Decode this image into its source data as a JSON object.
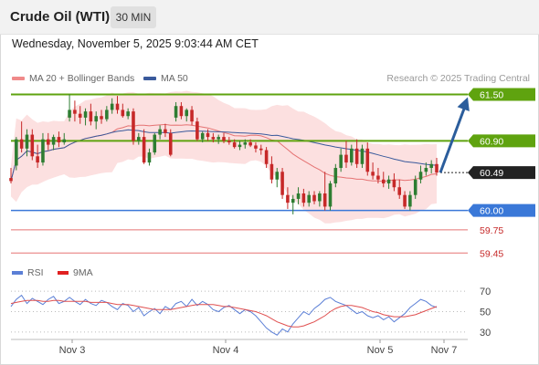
{
  "header": {
    "title": "Crude Oil (WTI)",
    "timeframe": "30 MIN",
    "date": "Wednesday, November 5, 2025 9:03:44 AM CET"
  },
  "legend": {
    "ma20": "MA 20 + Bollinger Bands",
    "ma50": "MA 50",
    "credit": "Research © 2025 Trading Central"
  },
  "rsi_legend": {
    "rsi": "RSI",
    "ma9": "9MA"
  },
  "colors": {
    "up": "#2e7d32",
    "down": "#c62828",
    "ma20": "#e57373",
    "bollinger_fill": "#fbdada",
    "ma50": "#3a5a9c",
    "target_green": "#5fa30f",
    "pivot_blue": "#3a78d8",
    "support_red": "#e57373",
    "arrow": "#2b5d9c",
    "rsi": "#5b7fd6",
    "rsi_ma": "#e05050"
  },
  "chart_data": [
    {
      "type": "candlestick",
      "title": "Crude Oil (WTI)",
      "xlabel": "",
      "ylabel": "",
      "ylim": [
        59.3,
        61.6
      ],
      "x_ticks": [
        "Nov 3",
        "Nov 4",
        "Nov 5",
        "Nov 7"
      ],
      "levels": [
        {
          "value": 61.5,
          "label": "61.50",
          "kind": "resistance"
        },
        {
          "value": 60.9,
          "label": "60.90",
          "kind": "resistance"
        },
        {
          "value": 60.49,
          "label": "60.49",
          "kind": "last"
        },
        {
          "value": 60.0,
          "label": "60.00",
          "kind": "pivot"
        },
        {
          "value": 59.75,
          "label": "59.75",
          "kind": "support"
        },
        {
          "value": 59.45,
          "label": "59.45",
          "kind": "support"
        }
      ],
      "arrow_target": 61.5,
      "series": [
        {
          "name": "MA 20 + Bollinger Bands",
          "type": "line"
        },
        {
          "name": "MA 50",
          "type": "line"
        }
      ],
      "candles": [
        [
          60.42,
          60.55,
          60.35,
          60.38
        ],
        [
          60.58,
          60.95,
          60.52,
          60.92
        ],
        [
          60.92,
          61.15,
          60.75,
          60.8
        ],
        [
          60.8,
          61.05,
          60.7,
          60.98
        ],
        [
          60.98,
          61.05,
          60.65,
          60.7
        ],
        [
          60.7,
          60.85,
          60.55,
          60.62
        ],
        [
          60.62,
          61.0,
          60.58,
          60.92
        ],
        [
          60.92,
          61.0,
          60.78,
          60.85
        ],
        [
          60.85,
          60.98,
          60.78,
          60.95
        ],
        [
          60.95,
          61.02,
          60.82,
          60.88
        ],
        [
          60.88,
          61.0,
          60.85,
          60.92
        ],
        [
          61.2,
          61.5,
          61.15,
          61.3
        ],
        [
          61.3,
          61.42,
          61.15,
          61.25
        ],
        [
          61.25,
          61.35,
          61.12,
          61.2
        ],
        [
          61.2,
          61.32,
          61.1,
          61.28
        ],
        [
          61.28,
          61.38,
          61.1,
          61.15
        ],
        [
          61.15,
          61.28,
          61.05,
          61.22
        ],
        [
          61.22,
          61.3,
          61.12,
          61.18
        ],
        [
          61.18,
          61.35,
          61.15,
          61.3
        ],
        [
          61.3,
          61.45,
          61.25,
          61.38
        ],
        [
          61.38,
          61.48,
          61.25,
          61.3
        ],
        [
          61.3,
          61.38,
          61.2,
          61.22
        ],
        [
          61.22,
          61.32,
          61.18,
          61.28
        ],
        [
          61.28,
          61.32,
          60.85,
          60.9
        ],
        [
          60.9,
          61.0,
          60.85,
          60.95
        ],
        [
          60.95,
          61.05,
          60.6,
          60.62
        ],
        [
          60.62,
          60.8,
          60.58,
          60.75
        ],
        [
          60.75,
          61.0,
          60.72,
          60.98
        ],
        [
          60.98,
          61.1,
          60.92,
          61.05
        ],
        [
          61.05,
          61.12,
          60.95,
          61.0
        ],
        [
          61.0,
          61.05,
          60.7,
          60.72
        ],
        [
          61.2,
          61.4,
          61.15,
          61.35
        ],
        [
          61.35,
          61.4,
          61.18,
          61.22
        ],
        [
          61.22,
          61.32,
          61.15,
          61.3
        ],
        [
          61.3,
          61.35,
          61.1,
          61.15
        ],
        [
          61.15,
          61.2,
          60.9,
          60.92
        ],
        [
          60.92,
          61.02,
          60.88,
          61.0
        ],
        [
          61.0,
          61.05,
          60.9,
          60.95
        ],
        [
          60.95,
          61.0,
          60.88,
          60.92
        ],
        [
          60.92,
          60.98,
          60.86,
          60.95
        ],
        [
          60.95,
          61.0,
          60.87,
          60.9
        ],
        [
          60.9,
          60.95,
          60.85,
          60.88
        ],
        [
          60.88,
          60.92,
          60.8,
          60.82
        ],
        [
          60.82,
          60.9,
          60.78,
          60.85
        ],
        [
          60.85,
          60.92,
          60.8,
          60.88
        ],
        [
          60.88,
          60.92,
          60.82,
          60.84
        ],
        [
          60.84,
          60.88,
          60.75,
          60.8
        ],
        [
          60.8,
          60.85,
          60.72,
          60.78
        ],
        [
          60.78,
          60.82,
          60.55,
          60.6
        ],
        [
          60.6,
          60.7,
          60.35,
          60.4
        ],
        [
          60.4,
          60.55,
          60.3,
          60.5
        ],
        [
          60.5,
          60.55,
          60.15,
          60.2
        ],
        [
          60.2,
          60.3,
          60.02,
          60.1
        ],
        [
          60.1,
          60.2,
          59.95,
          60.15
        ],
        [
          60.15,
          60.3,
          60.08,
          60.22
        ],
        [
          60.22,
          60.28,
          60.05,
          60.1
        ],
        [
          60.1,
          60.25,
          60.05,
          60.2
        ],
        [
          60.2,
          60.25,
          60.08,
          60.12
        ],
        [
          60.12,
          60.25,
          60.05,
          60.22
        ],
        [
          60.22,
          60.5,
          60.0,
          60.05
        ],
        [
          60.05,
          60.38,
          60.0,
          60.35
        ],
        [
          60.35,
          60.6,
          60.3,
          60.55
        ],
        [
          60.55,
          60.8,
          60.5,
          60.72
        ],
        [
          60.72,
          60.9,
          60.55,
          60.62
        ],
        [
          60.62,
          60.85,
          60.58,
          60.8
        ],
        [
          60.8,
          60.92,
          60.55,
          60.6
        ],
        [
          60.6,
          60.85,
          60.55,
          60.8
        ],
        [
          60.8,
          60.88,
          60.45,
          60.5
        ],
        [
          60.5,
          60.62,
          60.4,
          60.45
        ],
        [
          60.45,
          60.55,
          60.35,
          60.4
        ],
        [
          60.4,
          60.5,
          60.3,
          60.35
        ],
        [
          60.35,
          60.45,
          60.28,
          60.4
        ],
        [
          60.4,
          60.48,
          60.25,
          60.3
        ],
        [
          60.3,
          60.4,
          60.15,
          60.2
        ],
        [
          60.2,
          60.25,
          60.02,
          60.05
        ],
        [
          60.05,
          60.25,
          60.0,
          60.2
        ],
        [
          60.2,
          60.45,
          60.15,
          60.4
        ],
        [
          60.4,
          60.58,
          60.35,
          60.5
        ],
        [
          60.5,
          60.62,
          60.45,
          60.55
        ],
        [
          60.55,
          60.65,
          60.48,
          60.6
        ],
        [
          60.6,
          60.68,
          60.45,
          60.49
        ]
      ]
    },
    {
      "type": "line",
      "title": "RSI",
      "ylim": [
        20,
        80
      ],
      "y_ticks": [
        "70",
        "50",
        "30"
      ],
      "series": [
        {
          "name": "RSI",
          "values": [
            55,
            62,
            66,
            58,
            63,
            60,
            57,
            62,
            65,
            58,
            60,
            64,
            60,
            57,
            62,
            58,
            56,
            61,
            59,
            55,
            52,
            58,
            56,
            50,
            54,
            46,
            50,
            53,
            48,
            55,
            52,
            58,
            60,
            55,
            62,
            56,
            60,
            57,
            52,
            50,
            54,
            56,
            52,
            48,
            52,
            50,
            46,
            40,
            34,
            30,
            27,
            33,
            30,
            38,
            44,
            50,
            47,
            53,
            57,
            62,
            64,
            60,
            58,
            56,
            52,
            48,
            50,
            46,
            44,
            46,
            42,
            45,
            40,
            44,
            48,
            54,
            58,
            62,
            60,
            56,
            54
          ]
        },
        {
          "name": "9MA",
          "values": [
            58,
            59,
            60,
            61,
            61,
            61,
            60,
            60,
            61,
            61,
            60,
            60,
            60,
            60,
            60,
            59,
            59,
            59,
            59,
            58,
            57,
            57,
            57,
            56,
            55,
            54,
            53,
            52,
            52,
            52,
            52,
            53,
            54,
            55,
            56,
            57,
            57,
            57,
            57,
            56,
            55,
            55,
            54,
            53,
            52,
            51,
            50,
            48,
            46,
            43,
            40,
            38,
            36,
            35,
            35,
            36,
            38,
            40,
            43,
            46,
            50,
            53,
            55,
            56,
            56,
            55,
            54,
            52,
            50,
            49,
            47,
            46,
            45,
            45,
            45,
            46,
            47,
            49,
            51,
            53,
            55
          ]
        }
      ]
    }
  ]
}
